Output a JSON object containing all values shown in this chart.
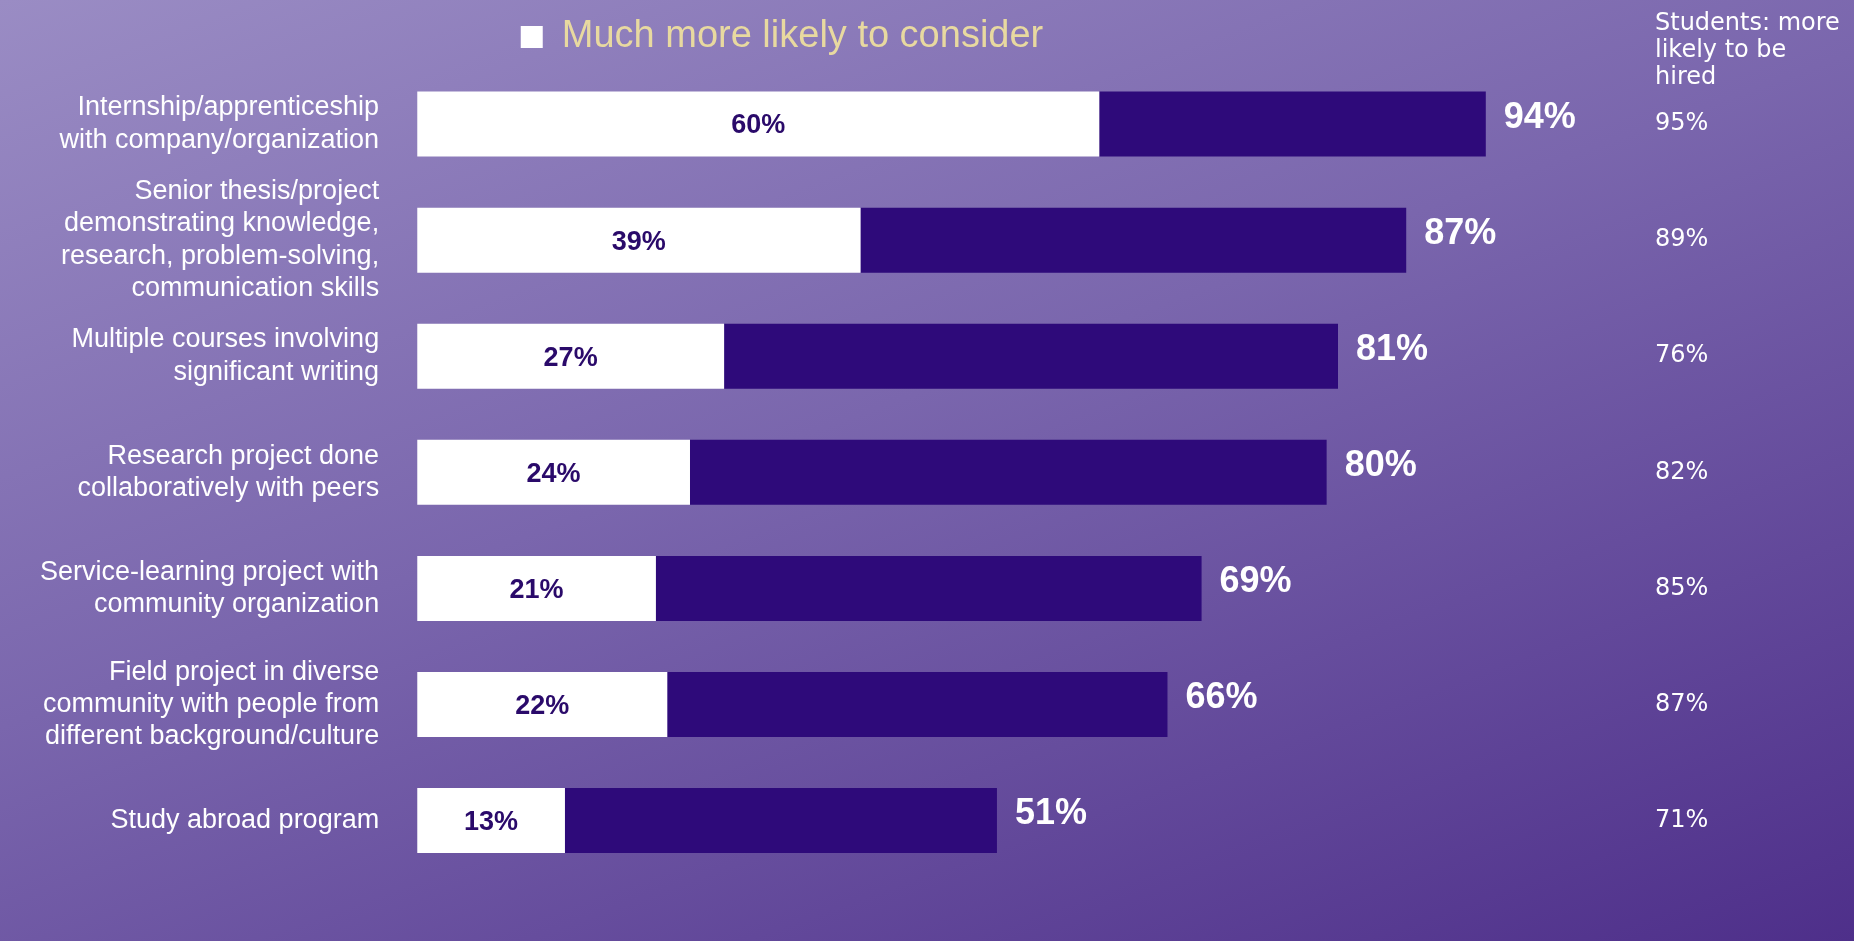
{
  "chart_data": {
    "type": "bar",
    "orientation": "horizontal",
    "stacked": true,
    "legend": "top",
    "grid": false,
    "tick_labels": "y",
    "categories": [
      "Internship/apprenticeship\nwith company/organization",
      "Senior thesis/project\ndemonstrating knowledge,\nresearch, problem-solving,\ncommunication skills",
      "Multiple courses involving\nsignificant writing",
      "Research project done\ncollaboratively with peers",
      "Service-learning project with\ncommunity organization",
      "Field project in diverse\ncommunity with people from\ndifferent background/culture",
      "Study abroad program"
    ],
    "series": [
      {
        "name": "Much more likely to consider",
        "color": "#ffffff",
        "values": [
          60,
          39,
          27,
          24,
          21,
          22,
          13
        ],
        "value_labels": [
          "60%",
          "39%",
          "27%",
          "24%",
          "21%",
          "22%",
          "13%"
        ]
      },
      {
        "color": "#2e0a7a",
        "values": [
          34,
          48,
          54,
          56,
          48,
          44,
          38
        ]
      }
    ],
    "totals": [
      "94%",
      "87%",
      "81%",
      "80%",
      "69%",
      "66%",
      "51%"
    ],
    "annotations": [
      "Students: more likely to be hired",
      "95%",
      "89%",
      "76%",
      "82%",
      "85%",
      "87%",
      "71%"
    ]
  }
}
